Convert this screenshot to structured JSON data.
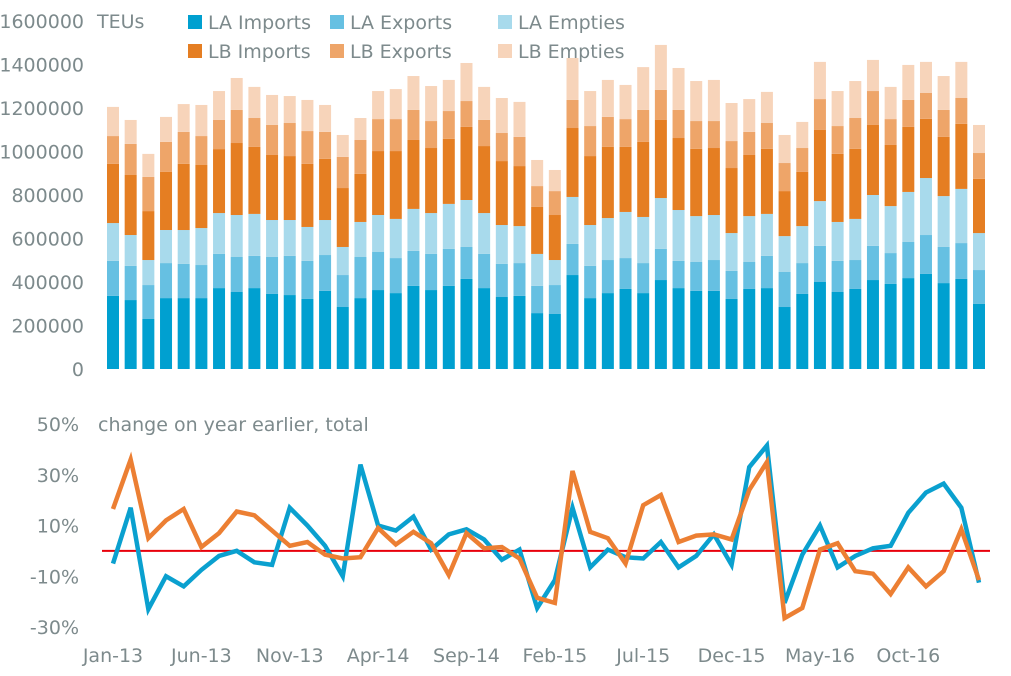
{
  "chart_data": [
    {
      "type": "bar",
      "stacked": true,
      "title": "",
      "unit_label": "TEUs",
      "xlabel": "",
      "ylabel": "TEUs",
      "ylim": [
        0,
        1600000
      ],
      "yticks": [
        0,
        200000,
        400000,
        600000,
        800000,
        1000000,
        1200000,
        1400000,
        1600000
      ],
      "ytick_labels": [
        "0",
        "200000",
        "400000",
        "600000",
        "800000",
        "1000000",
        "1200000",
        "1400000",
        "1600000"
      ],
      "grid": false,
      "legend_position": "top",
      "categories": [
        "Jan-13",
        "Feb-13",
        "Mar-13",
        "Apr-13",
        "May-13",
        "Jun-13",
        "Jul-13",
        "Aug-13",
        "Sep-13",
        "Oct-13",
        "Nov-13",
        "Dec-13",
        "Jan-14",
        "Feb-14",
        "Mar-14",
        "Apr-14",
        "May-14",
        "Jun-14",
        "Jul-14",
        "Aug-14",
        "Sep-14",
        "Oct-14",
        "Nov-14",
        "Dec-14",
        "Jan-15",
        "Feb-15",
        "Mar-15",
        "Apr-15",
        "May-15",
        "Jun-15",
        "Jul-15",
        "Aug-15",
        "Sep-15",
        "Oct-15",
        "Nov-15",
        "Dec-15",
        "Jan-16",
        "Feb-16",
        "Mar-16",
        "Apr-16",
        "May-16",
        "Jun-16",
        "Jul-16",
        "Aug-16",
        "Sep-16",
        "Oct-16",
        "Nov-16",
        "Dec-16",
        "Jan-17",
        "Feb-17"
      ],
      "series": [
        {
          "name": "LA Imports",
          "color": "#00a0d0",
          "values": [
            336000,
            317000,
            230000,
            326000,
            326000,
            326000,
            372000,
            354000,
            372000,
            345000,
            340000,
            322000,
            359000,
            285000,
            326000,
            363000,
            349000,
            382000,
            363000,
            382000,
            414000,
            372000,
            331000,
            336000,
            257000,
            253000,
            432000,
            326000,
            349000,
            368000,
            349000,
            409000,
            372000,
            359000,
            359000,
            322000,
            368000,
            372000,
            285000,
            345000,
            400000,
            354000,
            368000,
            409000,
            391000,
            418000,
            437000,
            395000,
            414000,
            299000
          ]
        },
        {
          "name": "LA Exports",
          "color": "#66c0e2",
          "values": [
            161000,
            157000,
            156000,
            161000,
            157000,
            152000,
            157000,
            161000,
            148000,
            170000,
            180000,
            175000,
            165000,
            147000,
            189000,
            175000,
            161000,
            161000,
            166000,
            170000,
            147000,
            157000,
            152000,
            151000,
            125000,
            133000,
            143000,
            148000,
            152000,
            142000,
            138000,
            143000,
            125000,
            133000,
            142000,
            129000,
            124000,
            148000,
            161000,
            142000,
            166000,
            143000,
            133000,
            157000,
            142000,
            166000,
            179000,
            166000,
            165000,
            156000
          ]
        },
        {
          "name": "LA Empties",
          "color": "#a8daec",
          "values": [
            174000,
            142000,
            115000,
            152000,
            156000,
            170000,
            188000,
            193000,
            193000,
            170000,
            165000,
            156000,
            161000,
            129000,
            161000,
            170000,
            180000,
            193000,
            188000,
            207000,
            216000,
            188000,
            179000,
            170000,
            147000,
            115000,
            216000,
            188000,
            193000,
            212000,
            212000,
            234000,
            234000,
            211000,
            207000,
            174000,
            211000,
            193000,
            165000,
            170000,
            206000,
            179000,
            189000,
            234000,
            216000,
            230000,
            262000,
            234000,
            249000,
            170000
          ]
        },
        {
          "name": "LB Imports",
          "color": "#e57e22",
          "values": [
            272000,
            276000,
            225000,
            267000,
            304000,
            290000,
            294000,
            331000,
            308000,
            299000,
            294000,
            290000,
            281000,
            271000,
            221000,
            294000,
            312000,
            317000,
            299000,
            299000,
            336000,
            308000,
            294000,
            276000,
            216000,
            207000,
            317000,
            317000,
            327000,
            299000,
            345000,
            359000,
            331000,
            309000,
            308000,
            299000,
            281000,
            299000,
            207000,
            249000,
            327000,
            313000,
            322000,
            322000,
            281000,
            299000,
            272000,
            272000,
            299000,
            249000
          ]
        },
        {
          "name": "LB Exports",
          "color": "#eea569",
          "values": [
            128000,
            143000,
            157000,
            138000,
            147000,
            133000,
            134000,
            152000,
            133000,
            138000,
            152000,
            151000,
            124000,
            143000,
            156000,
            147000,
            147000,
            138000,
            124000,
            128000,
            119000,
            120000,
            129000,
            134000,
            96000,
            110000,
            129000,
            138000,
            138000,
            128000,
            147000,
            138000,
            129000,
            128000,
            124000,
            124000,
            106000,
            119000,
            129000,
            110000,
            142000,
            128000,
            142000,
            156000,
            119000,
            124000,
            119000,
            124000,
            119000,
            119000
          ]
        },
        {
          "name": "LB Empties",
          "color": "#f7d4ba",
          "values": [
            134000,
            110000,
            106000,
            115000,
            128000,
            143000,
            133000,
            147000,
            143000,
            138000,
            124000,
            143000,
            124000,
            101000,
            101000,
            129000,
            138000,
            156000,
            161000,
            143000,
            175000,
            152000,
            161000,
            161000,
            120000,
            97000,
            193000,
            161000,
            170000,
            157000,
            197000,
            207000,
            193000,
            184000,
            189000,
            175000,
            151000,
            143000,
            129000,
            120000,
            171000,
            161000,
            170000,
            143000,
            148000,
            161000,
            143000,
            156000,
            166000,
            129000
          ]
        }
      ]
    },
    {
      "type": "line",
      "title": "",
      "annotation": "change on year earlier, total",
      "xlabel": "",
      "ylabel": "",
      "ylim": [
        -30,
        50
      ],
      "yticks": [
        -30,
        -10,
        10,
        30,
        50
      ],
      "ytick_labels": [
        "-30%",
        "-10%",
        "10%",
        "30%",
        "50%"
      ],
      "xtick_labels": [
        "Jan-13",
        "Jun-13",
        "Nov-13",
        "Apr-14",
        "Sep-14",
        "Feb-15",
        "Jul-15",
        "Dec-15",
        "May-16",
        "Oct-16"
      ],
      "reference_line": {
        "value": 0,
        "color": "#e8000b"
      },
      "grid": false,
      "categories": [
        "Jan-13",
        "Feb-13",
        "Mar-13",
        "Apr-13",
        "May-13",
        "Jun-13",
        "Jul-13",
        "Aug-13",
        "Sep-13",
        "Oct-13",
        "Nov-13",
        "Dec-13",
        "Jan-14",
        "Feb-14",
        "Mar-14",
        "Apr-14",
        "May-14",
        "Jun-14",
        "Jul-14",
        "Aug-14",
        "Sep-14",
        "Oct-14",
        "Nov-14",
        "Dec-14",
        "Jan-15",
        "Feb-15",
        "Mar-15",
        "Apr-15",
        "May-15",
        "Jun-15",
        "Jul-15",
        "Aug-15",
        "Sep-15",
        "Oct-15",
        "Nov-15",
        "Dec-15",
        "Jan-16",
        "Feb-16",
        "Mar-16",
        "Apr-16",
        "May-16",
        "Jun-16",
        "Jul-16",
        "Aug-16",
        "Sep-16",
        "Oct-16",
        "Nov-16",
        "Dec-16",
        "Jan-17",
        "Feb-17"
      ],
      "series": [
        {
          "name": "LA total",
          "color": "#0aa0cf",
          "values": [
            -5,
            17,
            -23,
            -10,
            -14,
            -7.5,
            -2,
            0,
            -4.5,
            -5.5,
            17,
            10,
            2,
            -10,
            34,
            10,
            8,
            13.5,
            0.5,
            6.5,
            8.5,
            4.5,
            -3.5,
            0.5,
            -22.5,
            -11.5,
            17,
            -6.5,
            0.5,
            -2.5,
            -3,
            3.5,
            -6.5,
            -2,
            6.5,
            -5.5,
            33,
            41.5,
            -20.5,
            -1.5,
            10,
            -6.5,
            -2,
            1,
            2,
            15,
            23,
            26.5,
            17,
            -12.5
          ]
        },
        {
          "name": "LB total",
          "color": "#ec7f33",
          "values": [
            16.5,
            36,
            5,
            12,
            16.5,
            1.5,
            7,
            15.5,
            14,
            8,
            2,
            3.5,
            -1.5,
            -3,
            -2.5,
            9,
            2.5,
            7.5,
            3,
            -9.5,
            7,
            1,
            1.5,
            -3,
            -18.5,
            -20.5,
            31.5,
            7.5,
            5,
            -5,
            18,
            22,
            3.5,
            6,
            6.5,
            4.5,
            24,
            35,
            -26.5,
            -22.5,
            0.5,
            3,
            -8,
            -9,
            -17,
            -6.5,
            -14,
            -8,
            8.5,
            -11.5
          ]
        }
      ]
    }
  ],
  "legend": {
    "items": [
      {
        "label": "LA Imports",
        "color": "#00a0d0"
      },
      {
        "label": "LA Exports",
        "color": "#66c0e2"
      },
      {
        "label": "LA Empties",
        "color": "#a8daec"
      },
      {
        "label": "LB Imports",
        "color": "#e57e22"
      },
      {
        "label": "LB Exports",
        "color": "#eea569"
      },
      {
        "label": "LB Empties",
        "color": "#f7d4ba"
      }
    ]
  }
}
